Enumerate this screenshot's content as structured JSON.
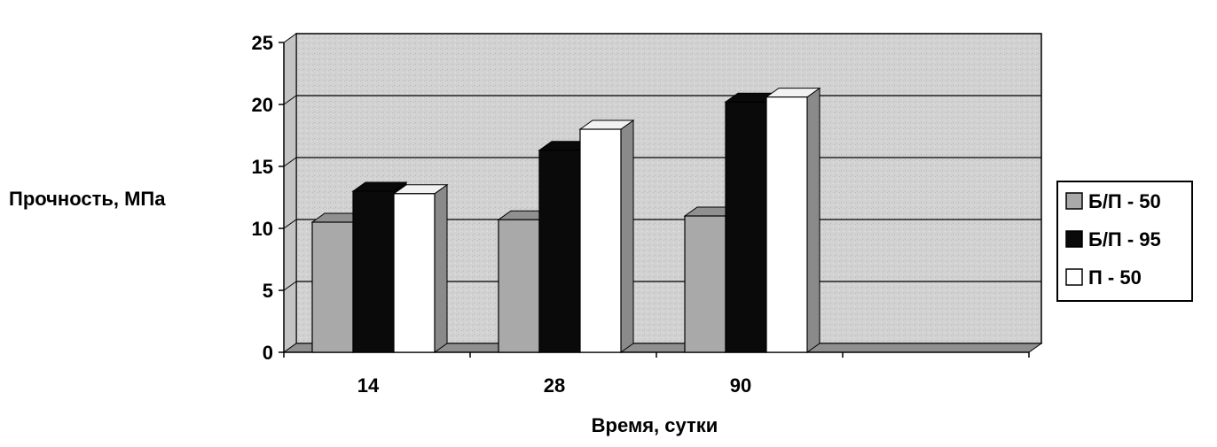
{
  "chart_data": {
    "type": "bar",
    "title": "",
    "xlabel": "Время, сутки",
    "ylabel": "Прочность, МПа",
    "categories": [
      "14",
      "28",
      "90"
    ],
    "ylim": [
      0,
      25
    ],
    "yticks": [
      "0",
      "5",
      "10",
      "15",
      "20",
      "25"
    ],
    "grid": true,
    "three_d": true,
    "legend_position": "right",
    "series": [
      {
        "name": "Б/П - 50",
        "values": [
          10.5,
          10.7,
          11.0
        ],
        "color": "#a9a9a9"
      },
      {
        "name": "Б/П - 95",
        "values": [
          13.0,
          16.3,
          20.2
        ],
        "color": "#0a0a0a"
      },
      {
        "name": "П - 50",
        "values": [
          12.8,
          18.0,
          20.6
        ],
        "color": "#ffffff"
      }
    ]
  },
  "colors": {
    "wall": "#cfcfcf",
    "floor": "#8f8f8f",
    "grid": "#000000"
  }
}
